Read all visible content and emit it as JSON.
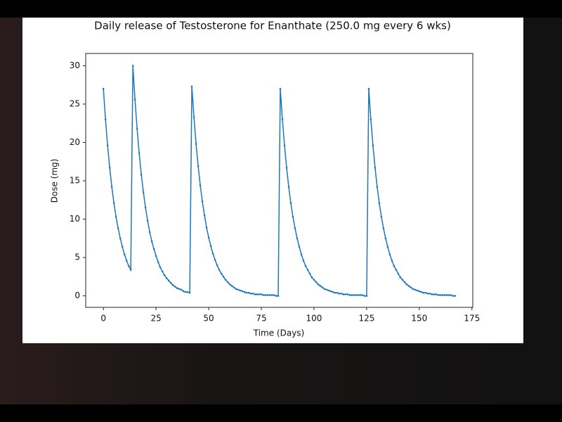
{
  "chart_data": {
    "type": "line",
    "title": "Daily release of Testosterone for Enanthate (250.0 mg every 6 wks)",
    "x_label": "Time (Days)",
    "y_label": "Dose (mg)",
    "x": [
      0,
      1,
      2,
      3,
      4,
      5,
      6,
      7,
      8,
      9,
      10,
      11,
      12,
      13,
      14,
      15,
      16,
      17,
      18,
      19,
      20,
      21,
      22,
      23,
      24,
      25,
      26,
      27,
      28,
      29,
      30,
      31,
      32,
      33,
      34,
      35,
      36,
      37,
      38,
      39,
      40,
      41,
      42,
      43,
      44,
      45,
      46,
      47,
      48,
      49,
      50,
      51,
      52,
      53,
      54,
      55,
      56,
      57,
      58,
      59,
      60,
      61,
      62,
      63,
      64,
      65,
      66,
      67,
      68,
      69,
      70,
      71,
      72,
      73,
      74,
      75,
      76,
      77,
      78,
      79,
      80,
      81,
      82,
      83,
      84,
      85,
      86,
      87,
      88,
      89,
      90,
      91,
      92,
      93,
      94,
      95,
      96,
      97,
      98,
      99,
      100,
      101,
      102,
      103,
      104,
      105,
      106,
      107,
      108,
      109,
      110,
      111,
      112,
      113,
      114,
      115,
      116,
      117,
      118,
      119,
      120,
      121,
      122,
      123,
      124,
      125,
      126,
      127,
      128,
      129,
      130,
      131,
      132,
      133,
      134,
      135,
      136,
      137,
      138,
      139,
      140,
      141,
      142,
      143,
      144,
      145,
      146,
      147,
      148,
      149,
      150,
      151,
      152,
      153,
      154,
      155,
      156,
      157,
      158,
      159,
      160,
      161,
      162,
      163,
      164,
      165,
      166,
      167
    ],
    "series": [
      {
        "color": "#1f77b4",
        "values": [
          27.0,
          23.0,
          19.6,
          16.7,
          14.2,
          12.1,
          10.3,
          8.8,
          7.5,
          6.4,
          5.4,
          4.6,
          3.9,
          3.4,
          30.0,
          25.6,
          21.8,
          18.6,
          15.8,
          13.5,
          11.5,
          9.8,
          8.3,
          7.1,
          6.1,
          5.2,
          4.4,
          3.7,
          3.2,
          2.7,
          2.3,
          2.0,
          1.7,
          1.4,
          1.2,
          1.0,
          0.9,
          0.8,
          0.6,
          0.5,
          0.5,
          0.4,
          27.3,
          23.3,
          19.8,
          16.9,
          14.4,
          12.3,
          10.5,
          8.9,
          7.6,
          6.5,
          5.5,
          4.7,
          4.0,
          3.4,
          2.9,
          2.5,
          2.1,
          1.8,
          1.5,
          1.3,
          1.1,
          0.9,
          0.8,
          0.7,
          0.6,
          0.5,
          0.4,
          0.4,
          0.3,
          0.3,
          0.2,
          0.2,
          0.2,
          0.2,
          0.1,
          0.1,
          0.1,
          0.1,
          0.1,
          0.1,
          0.0,
          0.0,
          27.0,
          23.0,
          19.6,
          16.7,
          14.2,
          12.1,
          10.3,
          8.8,
          7.5,
          6.4,
          5.4,
          4.6,
          3.9,
          3.4,
          2.9,
          2.4,
          2.1,
          1.8,
          1.5,
          1.3,
          1.1,
          0.9,
          0.8,
          0.7,
          0.6,
          0.5,
          0.4,
          0.4,
          0.3,
          0.3,
          0.2,
          0.2,
          0.2,
          0.1,
          0.1,
          0.1,
          0.1,
          0.1,
          0.1,
          0.1,
          0.0,
          0.0,
          27.0,
          23.0,
          19.6,
          16.7,
          14.2,
          12.1,
          10.3,
          8.8,
          7.5,
          6.4,
          5.4,
          4.6,
          3.9,
          3.4,
          2.9,
          2.4,
          2.1,
          1.8,
          1.5,
          1.3,
          1.1,
          0.9,
          0.8,
          0.7,
          0.6,
          0.5,
          0.4,
          0.4,
          0.3,
          0.3,
          0.2,
          0.2,
          0.2,
          0.1,
          0.1,
          0.1,
          0.1,
          0.1,
          0.1,
          0.1,
          0.0,
          0.0
        ]
      }
    ],
    "xlim": [
      -8.4,
      175.4
    ],
    "xticks": [
      0,
      25,
      50,
      75,
      100,
      125,
      150,
      175
    ],
    "ylim": [
      -1.5,
      31.6
    ],
    "yticks": [
      0,
      5,
      10,
      15,
      20,
      25,
      30
    ],
    "grid": false,
    "markers": true
  }
}
